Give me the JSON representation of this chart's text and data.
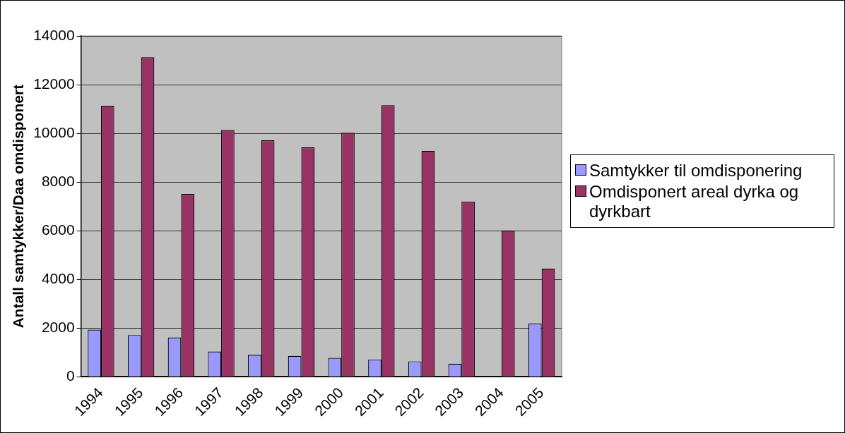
{
  "chart_data": {
    "type": "bar",
    "ylabel": "Antall samtykker/Daa omdisponert",
    "categories": [
      "1994",
      "1995",
      "1996",
      "1997",
      "1998",
      "1999",
      "2000",
      "2001",
      "2002",
      "2003",
      "2004",
      "2005"
    ],
    "series": [
      {
        "name": "Samtykker til omdisponering",
        "color": "#9999ff",
        "values": [
          1930,
          1710,
          1610,
          1030,
          900,
          850,
          770,
          710,
          630,
          530,
          null,
          2190
        ]
      },
      {
        "name": "Omdisponert areal dyrka og dyrkbart",
        "color": "#993366",
        "values": [
          11130,
          13120,
          7510,
          10140,
          9710,
          9420,
          10020,
          11150,
          9280,
          7200,
          6010,
          4440
        ]
      }
    ],
    "ylim": [
      0,
      14000
    ],
    "yticks": [
      0,
      2000,
      4000,
      6000,
      8000,
      10000,
      12000,
      14000
    ],
    "grid": "y",
    "legend": "right"
  }
}
